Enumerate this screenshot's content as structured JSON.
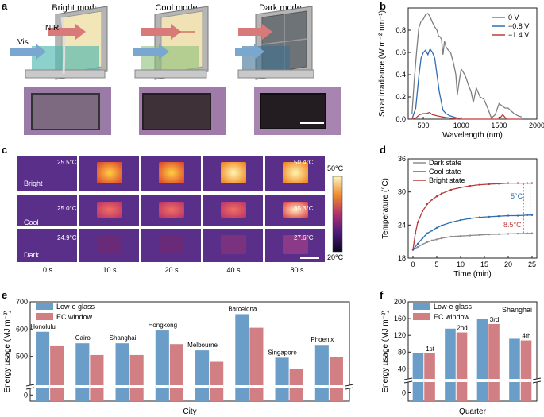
{
  "panel_labels": [
    "a",
    "b",
    "c",
    "d",
    "e",
    "f"
  ],
  "panel_a": {
    "modes": [
      "Bright mode",
      "Cool mode",
      "Dark mode"
    ],
    "nir_label": "NIR",
    "vis_label": "Vis",
    "colors": {
      "nir": "#d97a7a",
      "vis": "#7aa7cf",
      "frame": "#8a8a8a"
    }
  },
  "panel_c": {
    "row_labels": [
      "Bright",
      "Cool",
      "Dark"
    ],
    "time_labels": [
      "0 s",
      "10 s",
      "20 s",
      "40 s",
      "80 s"
    ],
    "temps": [
      [
        "25.5°C",
        "50.4°C"
      ],
      [
        "25.0°C",
        "35.3°C"
      ],
      [
        "24.9°C",
        "27.6°C"
      ]
    ],
    "colorbar_top": "50°C",
    "colorbar_bottom": "20°C"
  },
  "chart_data": [
    {
      "id": "b",
      "type": "line",
      "xlabel": "Wavelength (nm)",
      "ylabel": "Solar irradiance (W m⁻² nm⁻¹)",
      "xlim": [
        300,
        2000
      ],
      "ylim": [
        0,
        1.0
      ],
      "xticks": [
        500,
        1000,
        1500,
        2000
      ],
      "yticks": [
        0.0,
        0.2,
        0.4,
        0.6,
        0.8
      ],
      "ytick_labels": [
        "0.0",
        "0.2",
        "0.4",
        "0.6",
        "0.8"
      ],
      "legend_position": "top-right",
      "series": [
        {
          "name": "0 V",
          "color": "#7f7f7f",
          "x": [
            350,
            380,
            410,
            440,
            470,
            500,
            530,
            560,
            590,
            620,
            650,
            680,
            700,
            720,
            740,
            760,
            780,
            800,
            830,
            860,
            900,
            930,
            950,
            970,
            1000,
            1030,
            1060,
            1100,
            1130,
            1160,
            1200,
            1250,
            1300,
            1350,
            1400,
            1450,
            1500,
            1540,
            1580,
            1620,
            1650,
            1700,
            1750,
            1800
          ],
          "y": [
            0.05,
            0.35,
            0.6,
            0.82,
            0.88,
            0.9,
            0.94,
            0.95,
            0.92,
            0.87,
            0.83,
            0.8,
            0.75,
            0.74,
            0.72,
            0.58,
            0.7,
            0.65,
            0.62,
            0.6,
            0.5,
            0.4,
            0.22,
            0.32,
            0.45,
            0.42,
            0.38,
            0.3,
            0.25,
            0.15,
            0.28,
            0.2,
            0.18,
            0.1,
            0.01,
            0.04,
            0.14,
            0.12,
            0.1,
            0.1,
            0.08,
            0.05,
            0.03,
            0.02
          ]
        },
        {
          "name": "−0.8 V",
          "color": "#2f6fb0",
          "x": [
            350,
            400,
            440,
            470,
            500,
            530,
            560,
            590,
            620,
            650,
            670,
            690,
            710,
            730,
            760,
            800,
            850,
            900,
            950,
            1000
          ],
          "y": [
            0.0,
            0.1,
            0.38,
            0.55,
            0.6,
            0.62,
            0.58,
            0.63,
            0.6,
            0.55,
            0.45,
            0.35,
            0.25,
            0.18,
            0.08,
            0.05,
            0.03,
            0.02,
            0.01,
            0.0
          ]
        },
        {
          "name": "−1.4 V",
          "color": "#c03a3a",
          "x": [
            350,
            400,
            450,
            500,
            540,
            580,
            620,
            680,
            750,
            850,
            950,
            1050,
            1200,
            1400,
            1500,
            1550,
            1600,
            1700,
            1800
          ],
          "y": [
            0.0,
            0.01,
            0.04,
            0.05,
            0.05,
            0.06,
            0.04,
            0.03,
            0.02,
            0.01,
            0.0,
            0.0,
            0.0,
            0.0,
            0.0,
            0.04,
            0.0,
            0.0,
            0.0
          ]
        }
      ]
    },
    {
      "id": "d",
      "type": "line",
      "xlabel": "Time (min)",
      "ylabel": "Temperature (°C)",
      "xlim": [
        -1,
        26
      ],
      "ylim": [
        18,
        36
      ],
      "xticks": [
        0,
        5,
        10,
        15,
        20,
        25
      ],
      "yticks": [
        18,
        24,
        30,
        36
      ],
      "legend_position": "top-left",
      "series": [
        {
          "name": "Dark state",
          "color": "#8c8c8c",
          "x": [
            0,
            1,
            2,
            3,
            4,
            5,
            6,
            8,
            10,
            12,
            14,
            16,
            18,
            20,
            22,
            24,
            25
          ],
          "y": [
            19.5,
            20.0,
            20.5,
            20.9,
            21.2,
            21.4,
            21.6,
            21.9,
            22.0,
            22.1,
            22.2,
            22.3,
            22.35,
            22.4,
            22.45,
            22.5,
            22.5
          ]
        },
        {
          "name": "Cool state",
          "color": "#2f6fb0",
          "x": [
            0,
            1,
            2,
            3,
            4,
            5,
            6,
            8,
            10,
            12,
            14,
            16,
            18,
            20,
            22,
            24,
            25
          ],
          "y": [
            19.5,
            20.6,
            21.6,
            22.5,
            23.0,
            23.5,
            23.9,
            24.5,
            24.9,
            25.2,
            25.4,
            25.5,
            25.6,
            25.7,
            25.7,
            25.8,
            25.8
          ]
        },
        {
          "name": "Bright state",
          "color": "#b83a3a",
          "x": [
            0,
            0.5,
            1,
            2,
            3,
            4,
            5,
            6,
            8,
            10,
            12,
            14,
            16,
            18,
            20,
            22,
            24,
            25
          ],
          "y": [
            19.5,
            22.5,
            24.5,
            26.5,
            27.8,
            28.6,
            29.2,
            29.7,
            30.4,
            30.8,
            31.1,
            31.3,
            31.4,
            31.5,
            31.6,
            31.6,
            31.6,
            31.6
          ]
        }
      ],
      "annotations": [
        {
          "text": "5°C",
          "color": "#2f6fb0"
        },
        {
          "text": "8.5°C",
          "color": "#c03a3a"
        }
      ]
    },
    {
      "id": "e",
      "type": "bar",
      "xlabel": "City",
      "ylabel": "Energy usage (MJ m⁻²)",
      "ylim": [
        400,
        700
      ],
      "yticks": [
        500,
        600,
        700
      ],
      "broken_axis_label": "0",
      "legend_position": "top-left",
      "categories": [
        "Honolulu",
        "Cairo",
        "Shanghai",
        "Hongkong",
        "Melbourne",
        "Barcelona",
        "Singapore",
        "Phoenix"
      ],
      "series": [
        {
          "name": "Low-e glass",
          "color": "#6a9ec9",
          "values": [
            590,
            548,
            548,
            595,
            522,
            655,
            495,
            542
          ]
        },
        {
          "name": "EC window",
          "color": "#d17f82",
          "values": [
            540,
            505,
            505,
            545,
            480,
            605,
            455,
            498
          ]
        }
      ]
    },
    {
      "id": "f",
      "type": "bar",
      "title": "Shanghai",
      "xlabel": "Quarter",
      "ylabel": "Energy usage (MJ m⁻²)",
      "ylim": [
        20,
        200
      ],
      "yticks": [
        0,
        40,
        80,
        120,
        160,
        200
      ],
      "categories": [
        "1st",
        "2nd",
        "3rd",
        "4th"
      ],
      "legend_position": "top-left",
      "series": [
        {
          "name": "Low-e glass",
          "color": "#6a9ec9",
          "values": [
            78,
            136,
            159,
            112
          ]
        },
        {
          "name": "EC window",
          "color": "#d17f82",
          "values": [
            77,
            127,
            147,
            108
          ]
        }
      ]
    }
  ]
}
